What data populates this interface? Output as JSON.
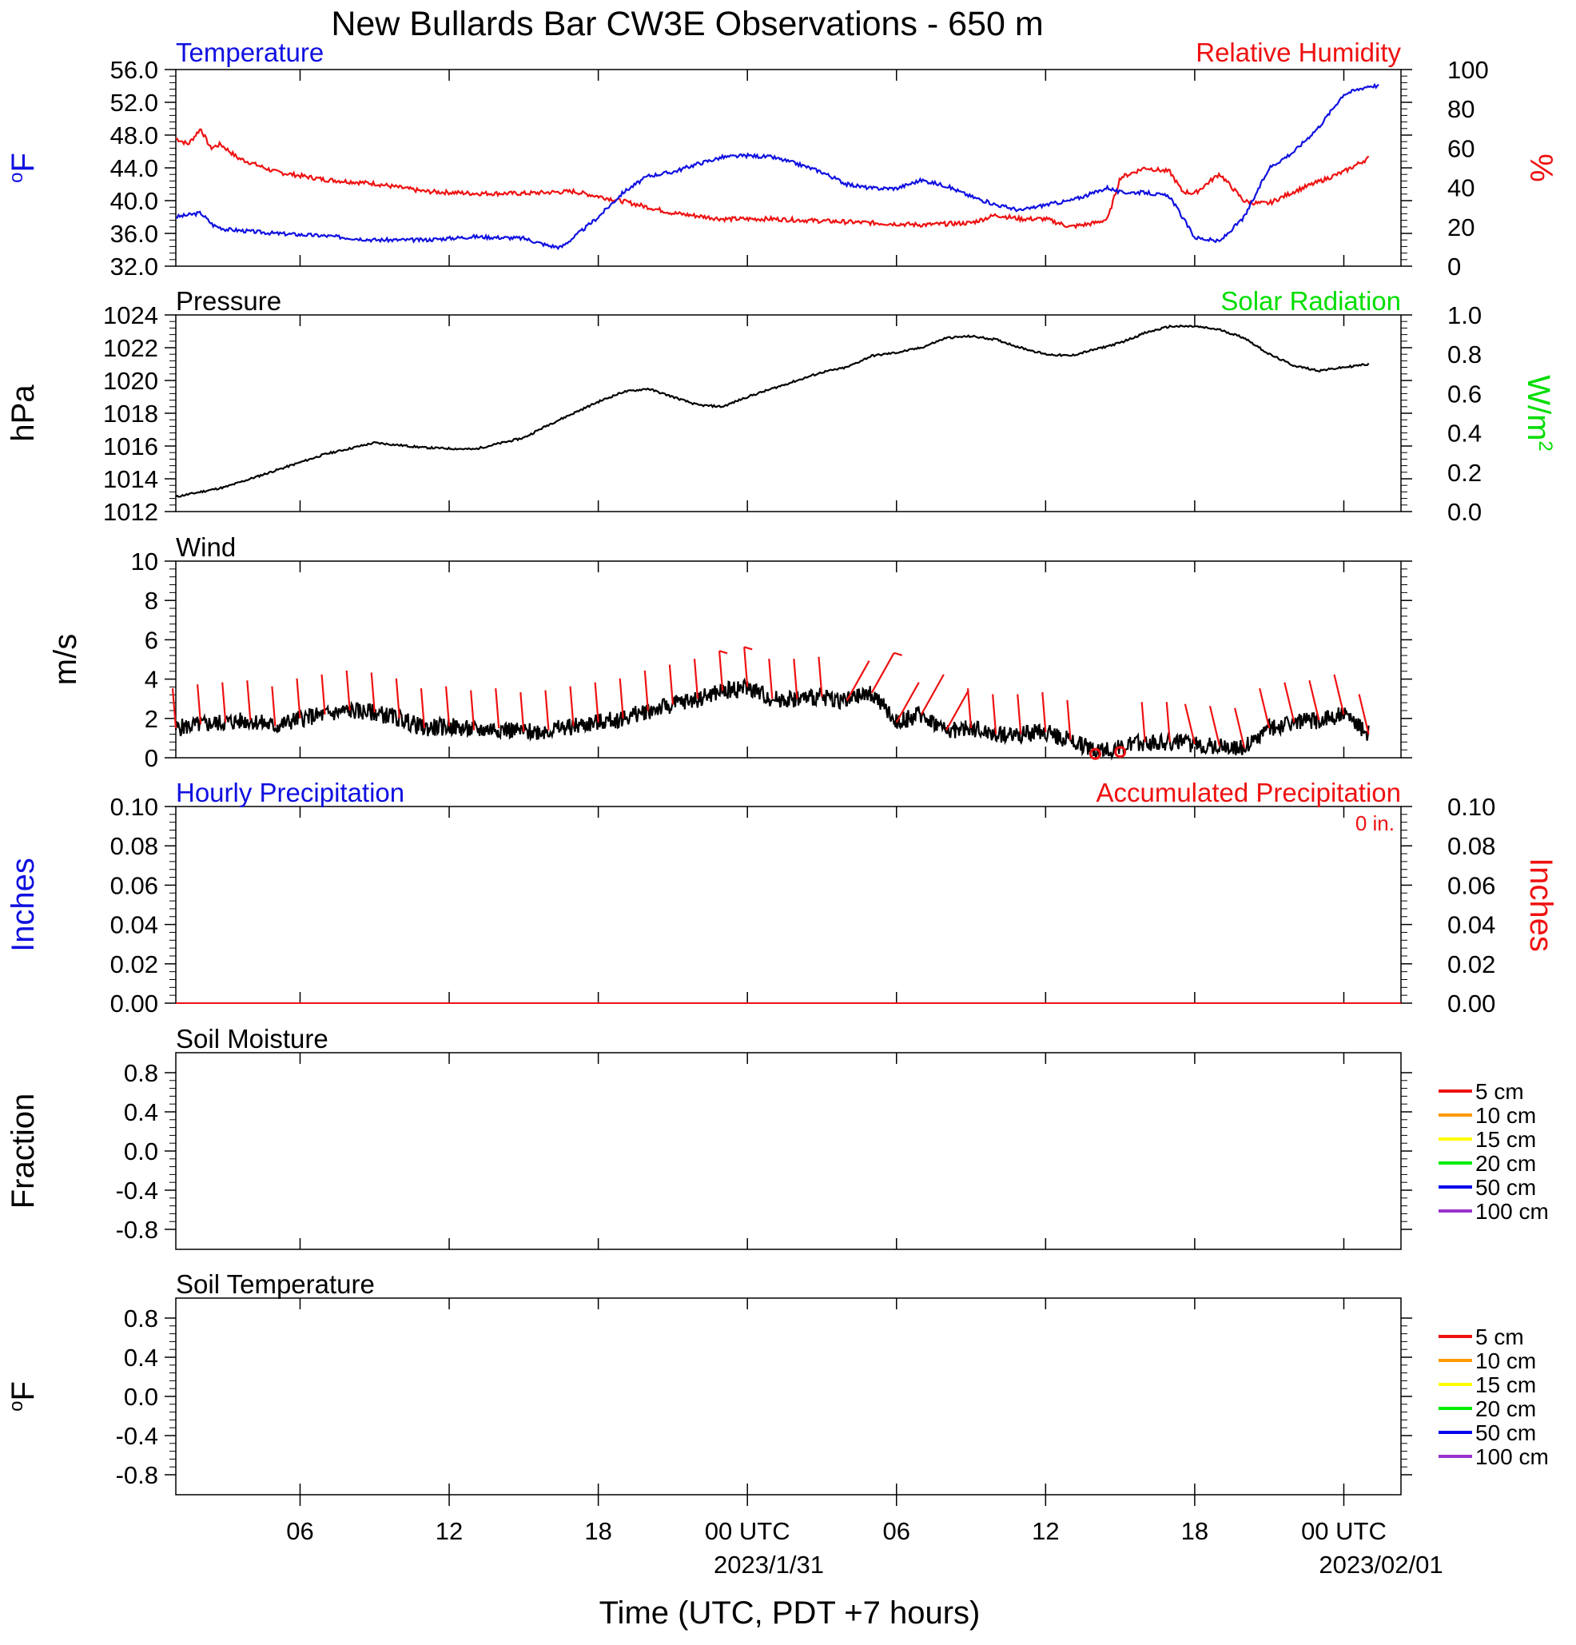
{
  "title": "New Bullards Bar CW3E Observations - 650 m",
  "xaxis": {
    "title": "Time (UTC, PDT +7 hours)",
    "ticks": [
      "06",
      "12",
      "18",
      "00 UTC",
      "06",
      "12",
      "18",
      "00 UTC"
    ],
    "dates": [
      "2023/1/31",
      "2023/02/01"
    ]
  },
  "colors": {
    "temperature": "#1010e0",
    "humidity": "#ee1111",
    "solar": "#00dd00",
    "black": "#000000",
    "legend": [
      "#ee1111",
      "#ff9900",
      "#ffff00",
      "#00ee00",
      "#0000ee",
      "#9933cc"
    ]
  },
  "panels": {
    "temp": {
      "left_title": "Temperature",
      "right_title": "Relative Humidity",
      "left_unit": "oF",
      "right_unit": "%",
      "left_ticks": [
        "56.0",
        "52.0",
        "48.0",
        "44.0",
        "40.0",
        "36.0",
        "32.0"
      ],
      "right_ticks": [
        "100",
        "80",
        "60",
        "40",
        "20",
        "0"
      ]
    },
    "pressure": {
      "left_title": "Pressure",
      "right_title": "Solar Radiation",
      "left_unit": "hPa",
      "right_unit": "W/m2",
      "left_ticks": [
        "1024",
        "1022",
        "1020",
        "1018",
        "1016",
        "1014",
        "1012"
      ],
      "right_ticks": [
        "1.0",
        "0.8",
        "0.6",
        "0.4",
        "0.2",
        "0.0"
      ]
    },
    "wind": {
      "left_title": "Wind",
      "left_unit": "m/s",
      "left_ticks": [
        "10",
        "8",
        "6",
        "4",
        "2",
        "0"
      ]
    },
    "precip": {
      "left_title": "Hourly Precipitation",
      "right_title": "Accumulated Precipitation",
      "accum_note": "0 in.",
      "left_unit": "Inches",
      "right_unit": "Inches",
      "left_ticks": [
        "0.10",
        "0.08",
        "0.06",
        "0.04",
        "0.02",
        "0.00"
      ],
      "right_ticks": [
        "0.10",
        "0.08",
        "0.06",
        "0.04",
        "0.02",
        "0.00"
      ]
    },
    "soilm": {
      "left_title": "Soil Moisture",
      "left_unit": "Fraction",
      "left_ticks": [
        "0.8",
        "0.4",
        "0.0",
        "-0.4",
        "-0.8"
      ],
      "legend": [
        "5 cm",
        "10 cm",
        "15 cm",
        "20 cm",
        "50 cm",
        "100 cm"
      ]
    },
    "soilt": {
      "left_title": "Soil Temperature",
      "left_unit": "oF",
      "left_ticks": [
        "0.8",
        "0.4",
        "0.0",
        "-0.4",
        "-0.8"
      ],
      "legend": [
        "5 cm",
        "10 cm",
        "15 cm",
        "20 cm",
        "50 cm",
        "100 cm"
      ]
    }
  },
  "chart_data": [
    {
      "type": "line",
      "title": "Temperature",
      "ylabel": "oF",
      "ylim": [
        32,
        56
      ],
      "x_hours": [
        0,
        1,
        1.5,
        2,
        4,
        6,
        8,
        10,
        12,
        14,
        15,
        15.5,
        16,
        17,
        18,
        19,
        20,
        21,
        22,
        23,
        24,
        25,
        26,
        27,
        28,
        29,
        30,
        31,
        32,
        33,
        34,
        35,
        36,
        37,
        37.5,
        38,
        39,
        40,
        41,
        42,
        43,
        44,
        45,
        46,
        47,
        48,
        48.4
      ],
      "series": [
        {
          "name": "Temperature",
          "values": [
            38,
            38.5,
            37,
            36.5,
            36,
            35.7,
            35.2,
            35.2,
            35.6,
            35.4,
            34.5,
            34.3,
            35.5,
            38,
            41,
            43,
            43.5,
            44.5,
            45.3,
            45.5,
            45.3,
            44.5,
            43.5,
            42,
            41.5,
            41.5,
            42.5,
            41.8,
            40.5,
            39.5,
            38.8,
            39.5,
            40,
            41,
            41.6,
            41,
            41,
            40.5,
            35.5,
            35,
            38,
            44,
            46,
            49,
            53,
            54,
            54
          ]
        }
      ]
    },
    {
      "type": "line",
      "title": "Relative Humidity",
      "ylabel": "%",
      "ylim": [
        0,
        100
      ],
      "x_hours": [
        0,
        0.5,
        1,
        1.4,
        1.8,
        2.5,
        4,
        6,
        8,
        10,
        12,
        14,
        16,
        18,
        20,
        22,
        24,
        26,
        28,
        30,
        32,
        33,
        34,
        35,
        36,
        37,
        37.5,
        38,
        39,
        40,
        40.5,
        41,
        42,
        43,
        43.5,
        44,
        45,
        46,
        47,
        48
      ],
      "series": [
        {
          "name": "Relative Humidity",
          "values": [
            65,
            62,
            70,
            60,
            62,
            55,
            48,
            44,
            42,
            38,
            37,
            37,
            38,
            33,
            27,
            24,
            24,
            23,
            22,
            21,
            22,
            26,
            24,
            24,
            20,
            22,
            24,
            45,
            50,
            48,
            38,
            37,
            47,
            33,
            32,
            32,
            38,
            43,
            48,
            55
          ]
        }
      ]
    },
    {
      "type": "line",
      "title": "Pressure",
      "ylabel": "hPa",
      "ylim": [
        1012,
        1024
      ],
      "x_hours": [
        0,
        2,
        4,
        6,
        8,
        10,
        12,
        14,
        15,
        16,
        17,
        18,
        19,
        20,
        21,
        22,
        23,
        24,
        25,
        26,
        27,
        28,
        29,
        30,
        31,
        32,
        33,
        34,
        35,
        36,
        37,
        38,
        39,
        40,
        41,
        42,
        43,
        44,
        45,
        46,
        47,
        48
      ],
      "series": [
        {
          "name": "Pressure",
          "values": [
            1012.9,
            1013.5,
            1014.5,
            1015.5,
            1016.2,
            1015.9,
            1015.8,
            1016.5,
            1017.3,
            1018,
            1018.7,
            1019.3,
            1019.5,
            1019,
            1018.5,
            1018.4,
            1019,
            1019.5,
            1020,
            1020.5,
            1020.8,
            1021.5,
            1021.7,
            1022,
            1022.6,
            1022.7,
            1022.5,
            1022,
            1021.6,
            1021.5,
            1021.9,
            1022.3,
            1022.9,
            1023.3,
            1023.3,
            1023.1,
            1022.6,
            1021.6,
            1020.9,
            1020.6,
            1020.8,
            1021
          ]
        }
      ]
    },
    {
      "type": "line",
      "title": "Wind",
      "ylabel": "m/s",
      "ylim": [
        0,
        10
      ],
      "x_hours": [
        0,
        1,
        2,
        3,
        4,
        5,
        6,
        7,
        8,
        9,
        10,
        11,
        12,
        13,
        14,
        15,
        16,
        17,
        18,
        19,
        20,
        21,
        22,
        23,
        24,
        25,
        26,
        27,
        28,
        29,
        30,
        31,
        32,
        33,
        34,
        35,
        36,
        37,
        38,
        39,
        40,
        41,
        42,
        43,
        44,
        45,
        46,
        47,
        48
      ],
      "series": [
        {
          "name": "Wind speed",
          "values": [
            1.5,
            1.7,
            1.8,
            1.9,
            1.6,
            2.0,
            2.2,
            2.4,
            2.3,
            2.0,
            1.5,
            1.6,
            1.4,
            1.5,
            1.3,
            1.4,
            1.6,
            1.8,
            2.0,
            2.4,
            2.7,
            3.0,
            3.4,
            3.6,
            3.0,
            3.0,
            3.1,
            2.9,
            3.3,
            1.8,
            2.2,
            1.4,
            1.5,
            1.2,
            1.2,
            1.3,
            0.9,
            0.4,
            0.5,
            0.8,
            0.8,
            0.7,
            0.6,
            0.5,
            1.5,
            1.8,
            1.9,
            2.2,
            1.2
          ]
        }
      ]
    },
    {
      "type": "line",
      "title": "Hourly Precipitation",
      "ylabel": "Inches",
      "ylim": [
        0,
        0.1
      ],
      "x_hours": [
        0,
        48
      ],
      "series": [
        {
          "name": "Accumulated Precipitation",
          "values": [
            0,
            0
          ]
        }
      ]
    }
  ]
}
